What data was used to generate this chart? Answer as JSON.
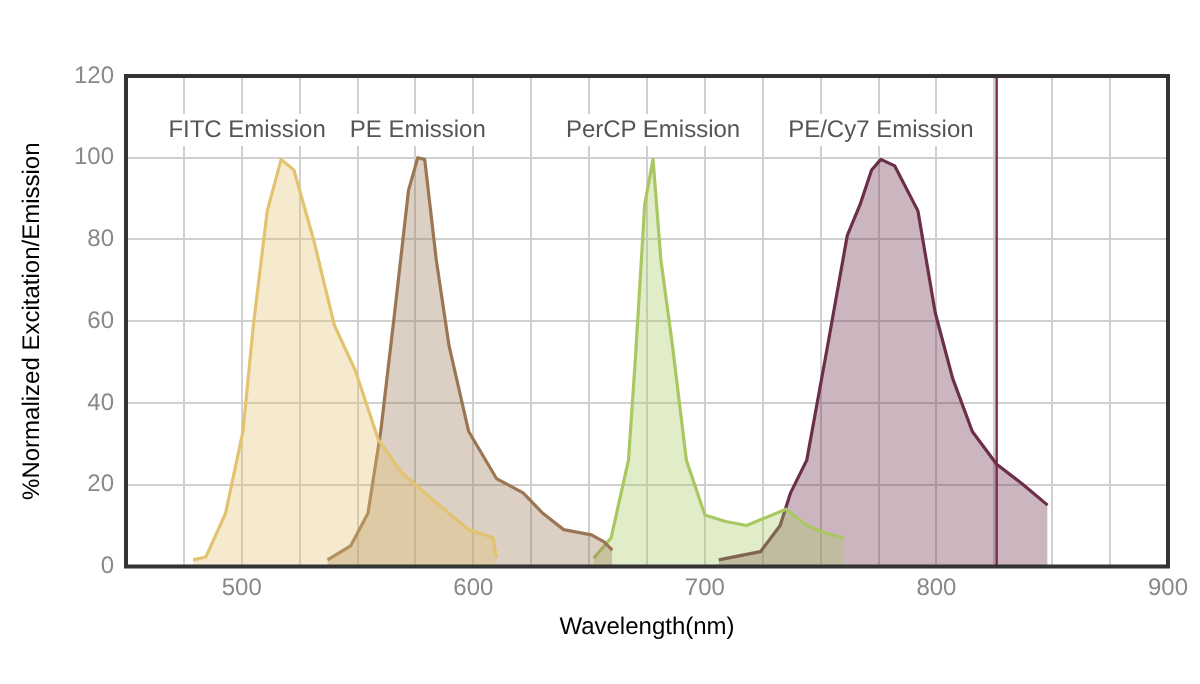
{
  "chart_data": {
    "type": "area",
    "xlabel": "Wavelength(nm)",
    "ylabel": "%Normalized Excitation/Emission",
    "xlim": [
      450,
      900
    ],
    "ylim": [
      0,
      120
    ],
    "xticks": [
      {
        "value": 475,
        "label": null
      },
      500,
      {
        "value": 525,
        "label": null
      },
      {
        "value": 550,
        "label": null
      },
      {
        "value": 575,
        "label": null
      },
      600,
      {
        "value": 625,
        "label": null
      },
      {
        "value": 650,
        "label": null
      },
      {
        "value": 675,
        "label": null
      },
      700,
      {
        "value": 725,
        "label": null
      },
      {
        "value": 750,
        "label": null
      },
      {
        "value": 775,
        "label": null
      },
      800,
      {
        "value": 825,
        "label": null
      },
      {
        "value": 850,
        "label": null
      },
      {
        "value": 875,
        "label": null
      },
      900
    ],
    "yticks": [
      0,
      20,
      40,
      60,
      80,
      100,
      120
    ],
    "grid": true,
    "legend": false,
    "marker": "none",
    "ref_lines": [
      {
        "axis": "x",
        "value": 826,
        "color": "#7a2a48"
      }
    ],
    "series": [
      {
        "name": "FITC Emission",
        "color": "#e2c370",
        "x": [
          479,
          484.5,
          493,
          500.5,
          505,
          511,
          517,
          522.5,
          531,
          540,
          549,
          559,
          569,
          581,
          589.5,
          598,
          608.5,
          610
        ],
        "values": [
          1.6,
          2.3,
          13,
          33,
          59,
          87,
          99.6,
          97,
          80,
          59,
          48,
          31,
          23,
          17,
          13,
          9,
          7,
          2
        ]
      },
      {
        "name": "PE Emission",
        "color": "#9a7654",
        "x": [
          537,
          547,
          554.5,
          560,
          566,
          572,
          576,
          579,
          584,
          589.5,
          598,
          610,
          621.5,
          630,
          639,
          651,
          656.5,
          660
        ],
        "values": [
          1.6,
          5,
          13,
          33,
          62,
          92,
          100,
          99.6,
          75,
          54,
          33,
          21.5,
          18,
          13,
          9,
          7.7,
          6,
          4
        ]
      },
      {
        "name": "PerCP Emission",
        "color": "#a9c862",
        "x": [
          652,
          659.5,
          667,
          670,
          674,
          677.6,
          681,
          686,
          692,
          700,
          709,
          718,
          726.5,
          735,
          744,
          753,
          760
        ],
        "values": [
          2,
          7,
          26,
          51,
          88.5,
          99.6,
          75,
          54,
          26,
          12.6,
          11,
          10,
          12,
          14,
          10,
          8,
          7
        ]
      },
      {
        "name": "PE/Cy7 Emission",
        "color": "#6b2f4a",
        "x": [
          706,
          724,
          732.5,
          737,
          744,
          753,
          761.5,
          767,
          772,
          776,
          782,
          792,
          799.5,
          807,
          815.5,
          826,
          837.5,
          848
        ],
        "values": [
          1.6,
          3.6,
          10,
          18,
          26,
          54,
          81,
          88.5,
          97,
          99.6,
          98,
          87,
          62,
          46,
          33,
          25,
          20,
          15
        ]
      }
    ]
  }
}
